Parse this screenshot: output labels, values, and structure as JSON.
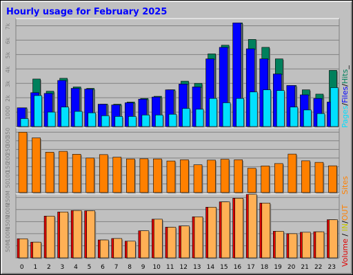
{
  "chart_data": {
    "type": "bar",
    "title": "Hourly usage for February 2025",
    "categories": [
      "0",
      "1",
      "2",
      "3",
      "4",
      "5",
      "6",
      "7",
      "8",
      "9",
      "10",
      "11",
      "12",
      "13",
      "14",
      "15",
      "16",
      "17",
      "18",
      "19",
      "20",
      "21",
      "22",
      "23"
    ],
    "colors": {
      "hits": "#00805c",
      "files": "#0000ff",
      "pages": "#00e0ff",
      "sites": "#ff8000",
      "volume_in": "#e00000",
      "volume_out": "#ffb055",
      "title": "#0000ff",
      "panel": "#c0c0c0",
      "grid": "#808080"
    },
    "side_labels": {
      "pages": "Pages",
      "files": "Files",
      "hits": "Hits",
      "sites": "Sites",
      "volume": "Volume",
      "in": "IN",
      "out": "OUT"
    },
    "panels": [
      {
        "name": "hits-files-pages",
        "ticks": [
          "1000",
          "2k",
          "3k",
          "4k",
          "5k",
          "6k",
          "7k"
        ],
        "tick_values": [
          1000,
          2000,
          3000,
          4000,
          5000,
          6000,
          7000
        ],
        "ylim": [
          0,
          7500
        ],
        "series": [
          {
            "name": "Hits",
            "values": [
              1300,
              3300,
              2450,
              3350,
              2750,
              2650,
              1550,
              1550,
              1700,
              1950,
              2100,
              2550,
              3150,
              3000,
              5050,
              5650,
              7200,
              6050,
              5500,
              4700,
              2850,
              2550,
              2250,
              3900
            ]
          },
          {
            "name": "Files",
            "values": [
              1300,
              2350,
              2300,
              3200,
              2650,
              2600,
              1550,
              1500,
              1650,
              1900,
              2050,
              2550,
              2950,
              2750,
              4700,
              5500,
              7200,
              5400,
              4700,
              3650,
              2850,
              2200,
              1950,
              1700
            ]
          },
          {
            "name": "Pages",
            "values": [
              550,
              2150,
              1000,
              1350,
              1050,
              950,
              750,
              700,
              700,
              800,
              800,
              850,
              1250,
              1200,
              1950,
              1650,
              1950,
              2400,
              2550,
              2500,
              1350,
              1150,
              900,
              2700
            ]
          }
        ]
      },
      {
        "name": "sites",
        "ticks": [
          "50",
          "100",
          "150",
          "200",
          "250",
          "300",
          "350"
        ],
        "tick_values": [
          50,
          100,
          150,
          200,
          250,
          300,
          350
        ],
        "ylim": [
          0,
          375
        ],
        "series": [
          {
            "name": "Sites",
            "values": [
              350,
              317,
              234,
              239,
              222,
              200,
              220,
              205,
              195,
              196,
              195,
              183,
              190,
              161,
              188,
              193,
              190,
              141,
              154,
              168,
              223,
              184,
              175,
              155
            ]
          }
        ]
      },
      {
        "name": "volume",
        "ticks": [
          "50M",
          "100M",
          "150M",
          "200M",
          "250M"
        ],
        "tick_values": [
          50,
          100,
          150,
          200,
          250
        ],
        "ylim": [
          0,
          265
        ],
        "series": [
          {
            "name": "Volume",
            "values": [
              79,
              65,
              173,
              190,
              196,
              195,
              74,
              80,
              69,
              112,
              160,
              127,
              132,
              170,
              210,
              232,
              247,
              263,
              227,
              110,
              100,
              106,
              108,
              158
            ]
          },
          {
            "name": "IN / OUT",
            "values": [
              79,
              65,
              173,
              190,
              196,
              195,
              74,
              80,
              69,
              112,
              160,
              127,
              132,
              170,
              210,
              232,
              247,
              263,
              227,
              110,
              100,
              106,
              108,
              158
            ]
          }
        ]
      }
    ]
  }
}
